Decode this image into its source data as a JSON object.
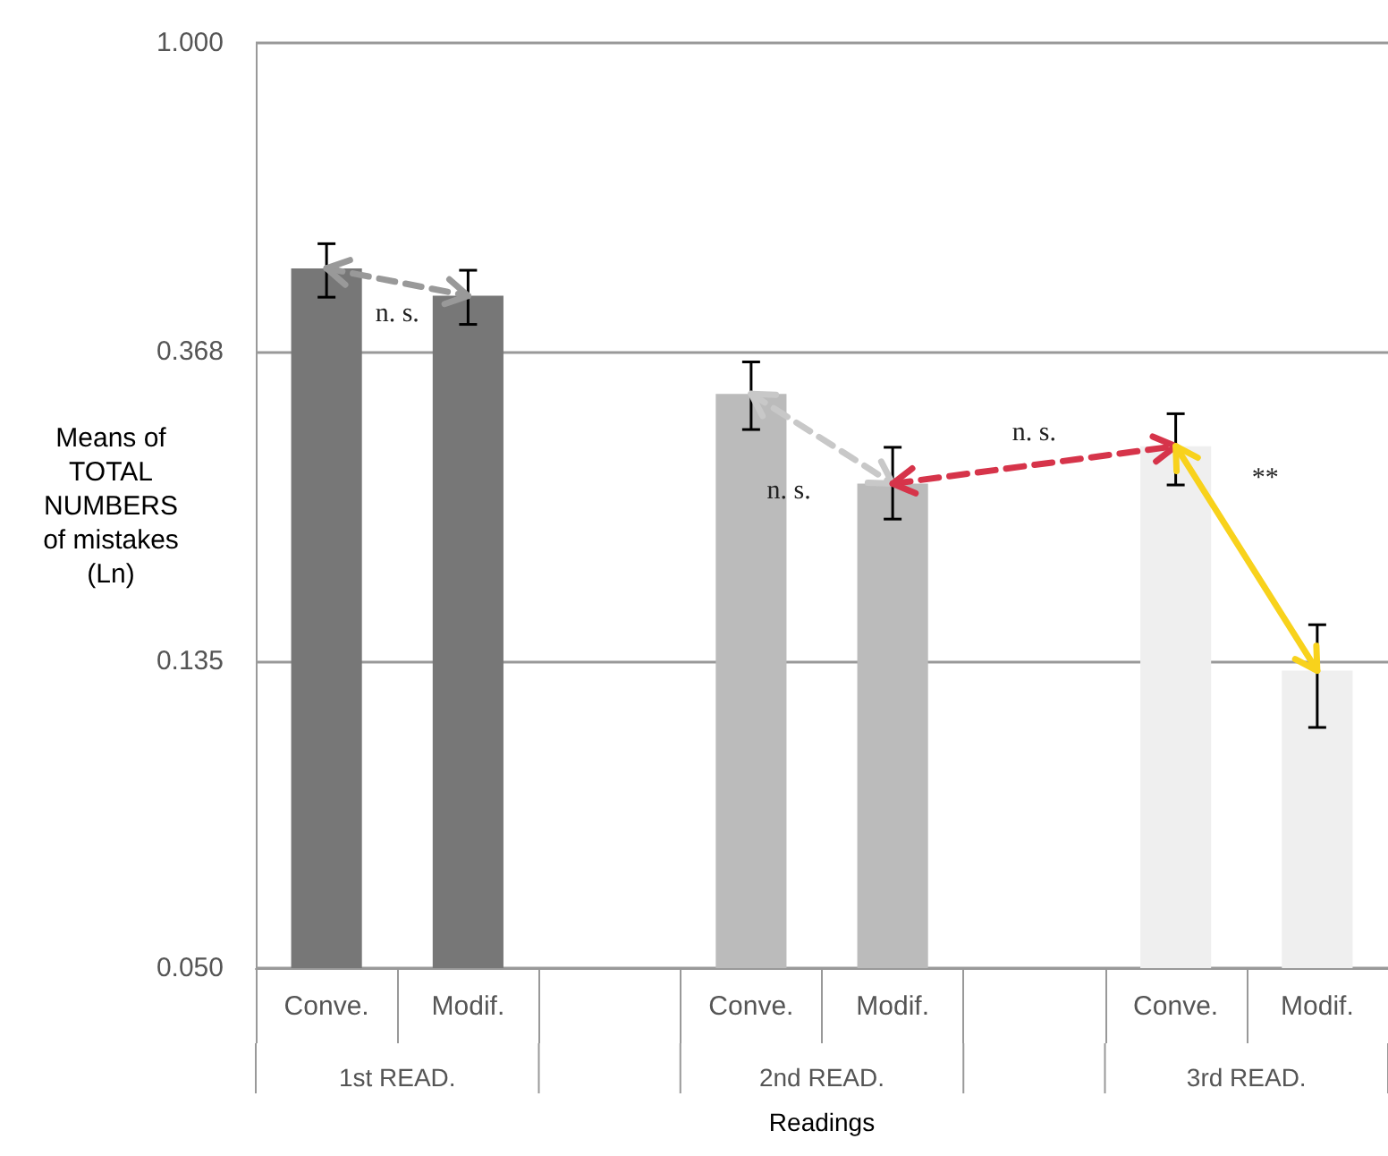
{
  "chart_data": {
    "type": "bar",
    "xlabel": "Readings",
    "ylabel": "Means of TOTAL NUMBERS of mistakes (Ln)",
    "categories": [
      "Conve.",
      "Modif.",
      null,
      "Conve.",
      "Modif.",
      null,
      "Conve.",
      "Modif."
    ],
    "values": [
      0.482,
      0.441,
      null,
      0.321,
      0.24,
      null,
      0.271,
      0.131
    ],
    "colors": [
      "#777777",
      "#777777",
      null,
      "#bbbbbb",
      "#bbbbbb",
      null,
      "#efefef",
      "#efefef"
    ],
    "errors": [
      [
        0.439,
        0.522
      ],
      [
        0.402,
        0.479
      ],
      null,
      [
        0.286,
        0.356
      ],
      [
        0.214,
        0.27
      ],
      null,
      [
        0.239,
        0.301
      ],
      [
        0.109,
        0.152
      ]
    ],
    "log": "y",
    "ylim": [
      0.05,
      1
    ],
    "yticks": [
      {
        "value": 0.05,
        "label": "0.050"
      },
      0.135,
      0.368,
      {
        "value": 1,
        "label": "1.000"
      }
    ],
    "grid": "y",
    "annotations": [
      "1st READ.",
      "2nd READ.",
      "3rd READ.",
      "n. s.",
      "n. s.",
      "n. s.",
      "**"
    ]
  }
}
